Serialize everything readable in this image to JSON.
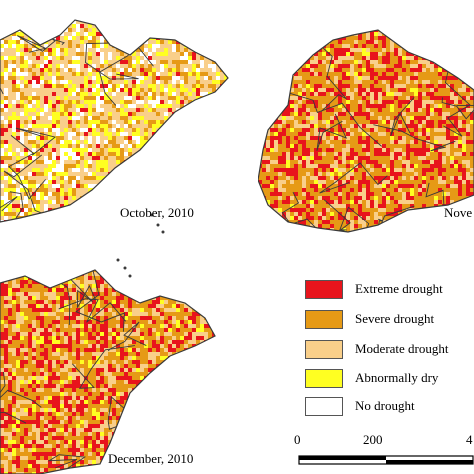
{
  "panels": [
    {
      "id": "oct",
      "label": "October, 2010"
    },
    {
      "id": "nov",
      "label": "Nove"
    },
    {
      "id": "dec",
      "label": "December, 2010"
    }
  ],
  "legend": {
    "items": [
      {
        "label": "Extreme drought",
        "color": "#e8141c"
      },
      {
        "label": "Severe drought",
        "color": "#e69a16"
      },
      {
        "label": "Moderate drought",
        "color": "#f9cf8a"
      },
      {
        "label": "Abnormally dry",
        "color": "#ffff22"
      },
      {
        "label": "No drought",
        "color": "#ffffff"
      }
    ]
  },
  "scalebar": {
    "labels": [
      "0",
      "200",
      "4"
    ]
  },
  "colors": {
    "boundary": "#3a3a3a"
  }
}
